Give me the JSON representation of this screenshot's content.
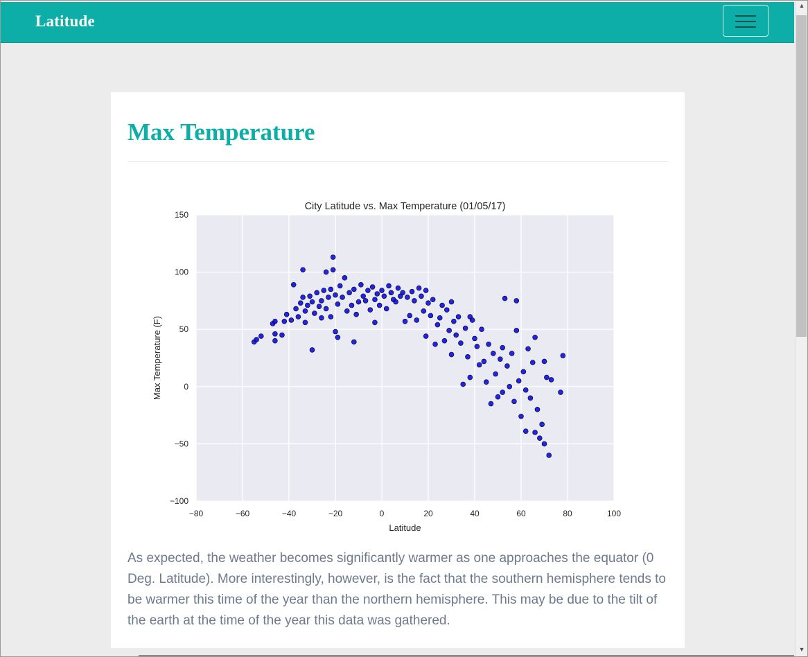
{
  "navbar": {
    "brand": "Latitude",
    "menu_icon": "hamburger-menu-icon"
  },
  "section": {
    "title": "Max Temperature",
    "description": "As expected, the weather becomes significantly warmer as one approaches the equator (0 Deg. Latitude). More interestingly, however, is the fact that the southern hemisphere tends to be warmer this time of the year than the northern hemisphere. This may be due to the tilt of the earth at the time of the year this data was gathered."
  },
  "colors": {
    "brand": "#0dada8",
    "plot_bg": "#eaeaf2",
    "point": "#0000ee",
    "text": "#6d7a8c"
  },
  "chart_data": {
    "type": "scatter",
    "title": "City Latitude vs. Max Temperature (01/05/17)",
    "xlabel": "Latitude",
    "ylabel": "Max Temperature (F)",
    "xlim": [
      -80,
      100
    ],
    "ylim": [
      -100,
      150
    ],
    "xticks": [
      -80,
      -60,
      -40,
      -20,
      0,
      20,
      40,
      60,
      80,
      100
    ],
    "yticks": [
      -100,
      -50,
      0,
      50,
      100,
      150
    ],
    "xtick_labels": [
      "−80",
      "−60",
      "−40",
      "−20",
      "0",
      "20",
      "40",
      "60",
      "80",
      "100"
    ],
    "ytick_labels": [
      "−100",
      "−50",
      "0",
      "50",
      "100",
      "150"
    ],
    "grid": true,
    "points": [
      [
        -55,
        39
      ],
      [
        -54,
        41
      ],
      [
        -52,
        44
      ],
      [
        -47,
        55
      ],
      [
        -46,
        57
      ],
      [
        -46,
        46
      ],
      [
        -46,
        40
      ],
      [
        -43,
        45
      ],
      [
        -42,
        57
      ],
      [
        -41,
        63
      ],
      [
        -39,
        58
      ],
      [
        -38,
        89
      ],
      [
        -37,
        68
      ],
      [
        -36,
        61
      ],
      [
        -35,
        73
      ],
      [
        -34,
        78
      ],
      [
        -34,
        102
      ],
      [
        -33,
        66
      ],
      [
        -33,
        56
      ],
      [
        -32,
        71
      ],
      [
        -31,
        79
      ],
      [
        -30,
        32
      ],
      [
        -30,
        74
      ],
      [
        -29,
        64
      ],
      [
        -28,
        82
      ],
      [
        -27,
        70
      ],
      [
        -26,
        75
      ],
      [
        -26,
        60
      ],
      [
        -25,
        84
      ],
      [
        -24,
        100
      ],
      [
        -24,
        68
      ],
      [
        -23,
        78
      ],
      [
        -22,
        85
      ],
      [
        -22,
        61
      ],
      [
        -21,
        113
      ],
      [
        -21,
        102
      ],
      [
        -20,
        80
      ],
      [
        -20,
        48
      ],
      [
        -19,
        43
      ],
      [
        -19,
        72
      ],
      [
        -18,
        88
      ],
      [
        -17,
        78
      ],
      [
        -16,
        95
      ],
      [
        -15,
        66
      ],
      [
        -14,
        82
      ],
      [
        -13,
        71
      ],
      [
        -12,
        39
      ],
      [
        -12,
        85
      ],
      [
        -11,
        63
      ],
      [
        -10,
        74
      ],
      [
        -9,
        89
      ],
      [
        -8,
        79
      ],
      [
        -7,
        75
      ],
      [
        -6,
        84
      ],
      [
        -5,
        67
      ],
      [
        -4,
        87
      ],
      [
        -3,
        56
      ],
      [
        -3,
        76
      ],
      [
        -2,
        81
      ],
      [
        -1,
        71
      ],
      [
        0,
        84
      ],
      [
        1,
        79
      ],
      [
        2,
        68
      ],
      [
        3,
        88
      ],
      [
        4,
        82
      ],
      [
        5,
        76
      ],
      [
        6,
        74
      ],
      [
        7,
        86
      ],
      [
        8,
        79
      ],
      [
        9,
        82
      ],
      [
        10,
        57
      ],
      [
        11,
        78
      ],
      [
        12,
        62
      ],
      [
        13,
        83
      ],
      [
        14,
        75
      ],
      [
        15,
        58
      ],
      [
        16,
        86
      ],
      [
        17,
        79
      ],
      [
        18,
        66
      ],
      [
        19,
        84
      ],
      [
        19,
        44
      ],
      [
        20,
        73
      ],
      [
        21,
        62
      ],
      [
        22,
        76
      ],
      [
        23,
        37
      ],
      [
        24,
        54
      ],
      [
        25,
        60
      ],
      [
        26,
        71
      ],
      [
        27,
        40
      ],
      [
        28,
        67
      ],
      [
        29,
        49
      ],
      [
        30,
        74
      ],
      [
        30,
        28
      ],
      [
        31,
        57
      ],
      [
        32,
        45
      ],
      [
        33,
        61
      ],
      [
        34,
        38
      ],
      [
        35,
        2
      ],
      [
        36,
        51
      ],
      [
        37,
        26
      ],
      [
        38,
        61
      ],
      [
        38,
        8
      ],
      [
        39,
        58
      ],
      [
        40,
        42
      ],
      [
        41,
        35
      ],
      [
        42,
        19
      ],
      [
        43,
        50
      ],
      [
        44,
        22
      ],
      [
        45,
        4
      ],
      [
        46,
        37
      ],
      [
        47,
        -15
      ],
      [
        48,
        29
      ],
      [
        49,
        11
      ],
      [
        50,
        -9
      ],
      [
        51,
        24
      ],
      [
        52,
        34
      ],
      [
        52,
        -5
      ],
      [
        53,
        77
      ],
      [
        54,
        18
      ],
      [
        55,
        0
      ],
      [
        56,
        29
      ],
      [
        57,
        -13
      ],
      [
        58,
        75
      ],
      [
        58,
        49
      ],
      [
        59,
        5
      ],
      [
        60,
        -26
      ],
      [
        61,
        13
      ],
      [
        62,
        -39
      ],
      [
        62,
        -3
      ],
      [
        63,
        33
      ],
      [
        64,
        -10
      ],
      [
        65,
        21
      ],
      [
        66,
        -40
      ],
      [
        66,
        43
      ],
      [
        67,
        -20
      ],
      [
        68,
        -45
      ],
      [
        69,
        -33
      ],
      [
        70,
        22
      ],
      [
        70,
        -50
      ],
      [
        71,
        8
      ],
      [
        72,
        -60
      ],
      [
        73,
        6
      ],
      [
        77,
        -5
      ],
      [
        78,
        27
      ]
    ]
  }
}
